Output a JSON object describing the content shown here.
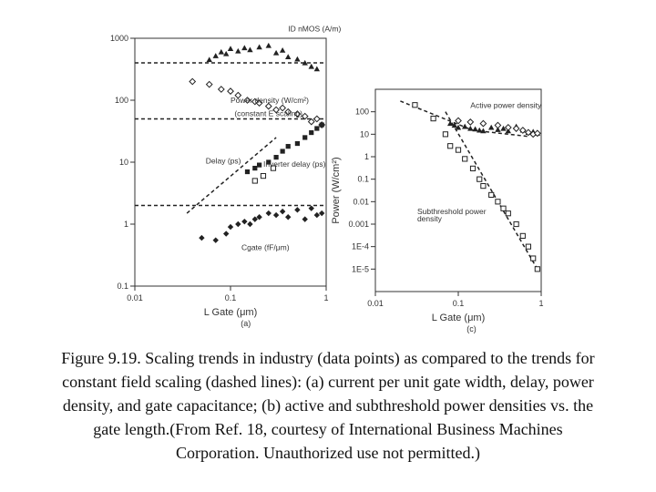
{
  "caption": "Figure 9.19. Scaling trends in industry (data points) as compared to the trends for constant field scaling (dashed lines): (a) current per unit gate width, delay, power density, and gate capacitance; (b) active and subthreshold power densities vs. the gate length.(From Ref. 18, courtesy of International Business Machines Corporation. Unauthorized use not permitted.)",
  "chart_data": [
    {
      "panel_label": "(a)",
      "type": "scatter",
      "xlabel": "L Gate (μm)",
      "ylabel": "",
      "x_scale": "log",
      "y_scale": "log",
      "xlim": [
        0.01,
        1
      ],
      "ylim": [
        0.1,
        1000
      ],
      "x_ticks": [
        {
          "v": 0.01,
          "label": "0.01"
        },
        {
          "v": 0.1,
          "label": "0.1"
        },
        {
          "v": 1,
          "label": "1"
        }
      ],
      "y_ticks": [
        {
          "v": 0.1,
          "label": "0.1"
        },
        {
          "v": 1,
          "label": "1"
        },
        {
          "v": 10,
          "label": "10"
        },
        {
          "v": 100,
          "label": "100"
        },
        {
          "v": 1000,
          "label": "1000"
        }
      ],
      "annotations": [
        {
          "text": "ID nMOS (A/m)",
          "x": 0.4,
          "y": 1300
        },
        {
          "text": "Power density (W/cm²)",
          "x": 0.1,
          "y": 90
        },
        {
          "text": "(constant E scaling)",
          "x": 0.11,
          "y": 55
        },
        {
          "text": "Delay (ps)",
          "x": 0.055,
          "y": 9.5
        },
        {
          "text": "Inverter delay (ps)",
          "x": 0.22,
          "y": 8.5
        },
        {
          "text": "Cgate (fF/μm)",
          "x": 0.13,
          "y": 0.38
        }
      ],
      "series": [
        {
          "name": "ID nMOS (A/m)",
          "marker": "triangle",
          "x": [
            0.06,
            0.07,
            0.08,
            0.09,
            0.1,
            0.12,
            0.14,
            0.16,
            0.2,
            0.25,
            0.3,
            0.35,
            0.4,
            0.5,
            0.6,
            0.7,
            0.8
          ],
          "y": [
            450,
            520,
            600,
            560,
            680,
            620,
            700,
            650,
            720,
            760,
            580,
            640,
            500,
            460,
            400,
            350,
            320
          ]
        },
        {
          "name": "Power density (W/cm²)",
          "marker": "diamond-open",
          "x": [
            0.04,
            0.06,
            0.08,
            0.1,
            0.12,
            0.15,
            0.18,
            0.2,
            0.25,
            0.3,
            0.35,
            0.4,
            0.5,
            0.6,
            0.7,
            0.8,
            0.9
          ],
          "y": [
            200,
            180,
            150,
            140,
            120,
            100,
            95,
            90,
            80,
            70,
            75,
            65,
            60,
            55,
            45,
            50,
            40
          ]
        },
        {
          "name": "Delay (ps)",
          "marker": "square",
          "x": [
            0.15,
            0.18,
            0.2,
            0.25,
            0.3,
            0.35,
            0.4,
            0.5,
            0.6,
            0.7,
            0.8,
            0.9
          ],
          "y": [
            7,
            8,
            9,
            10,
            12,
            15,
            18,
            20,
            25,
            30,
            35,
            40
          ]
        },
        {
          "name": "Inverter delay (ps)",
          "marker": "square-open",
          "x": [
            0.18,
            0.22,
            0.28
          ],
          "y": [
            5,
            6,
            8
          ]
        },
        {
          "name": "Cgate (fF/μm)",
          "marker": "diamond",
          "x": [
            0.05,
            0.07,
            0.09,
            0.1,
            0.12,
            0.14,
            0.16,
            0.18,
            0.2,
            0.25,
            0.3,
            0.35,
            0.4,
            0.5,
            0.6,
            0.7,
            0.8,
            0.9
          ],
          "y": [
            0.6,
            0.55,
            0.7,
            0.9,
            1.0,
            1.1,
            1.0,
            1.2,
            1.3,
            1.5,
            1.4,
            1.6,
            1.3,
            1.7,
            1.2,
            1.8,
            1.4,
            1.5
          ]
        }
      ],
      "reference_lines": [
        {
          "kind": "horizontal",
          "y": 400
        },
        {
          "kind": "horizontal",
          "y": 50
        },
        {
          "kind": "horizontal",
          "y": 2
        },
        {
          "kind": "segment",
          "x": [
            0.035,
            0.3
          ],
          "y": [
            1.5,
            25
          ]
        }
      ]
    },
    {
      "panel_label": "(c)",
      "type": "scatter",
      "xlabel": "L Gate (μm)",
      "ylabel": "Power (W/cm²)",
      "x_scale": "log",
      "y_scale": "log",
      "xlim": [
        0.01,
        1
      ],
      "ylim": [
        1e-06,
        1000
      ],
      "x_ticks": [
        {
          "v": 0.01,
          "label": "0.01"
        },
        {
          "v": 0.1,
          "label": "0.1"
        },
        {
          "v": 1,
          "label": "1"
        }
      ],
      "y_ticks": [
        {
          "v": 100,
          "label": "100"
        },
        {
          "v": 10,
          "label": "10"
        },
        {
          "v": 1,
          "label": "1"
        },
        {
          "v": 0.1,
          "label": "0.1"
        },
        {
          "v": 0.01,
          "label": "0.01"
        },
        {
          "v": 0.001,
          "label": "0.001"
        },
        {
          "v": 0.0001,
          "label": "1E-4"
        },
        {
          "v": 1e-05,
          "label": "1E-5"
        }
      ],
      "annotations": [
        {
          "text": "Active power density",
          "x": 0.14,
          "y": 150
        },
        {
          "text": "Subthreshold power",
          "x": 0.032,
          "y": 0.0028
        },
        {
          "text": "density",
          "x": 0.032,
          "y": 0.0013
        }
      ],
      "series": [
        {
          "name": "Active power density",
          "marker": "triangle",
          "x": [
            0.08,
            0.09,
            0.1,
            0.12,
            0.14,
            0.16,
            0.18,
            0.2,
            0.25,
            0.3,
            0.35,
            0.4,
            0.5,
            0.6,
            0.7,
            0.8,
            0.9
          ],
          "y": [
            30,
            25,
            20,
            22,
            18,
            17,
            15,
            14,
            20,
            16,
            18,
            14,
            22,
            15,
            12,
            13,
            11
          ]
        },
        {
          "name": "Active power density (measured)",
          "marker": "diamond-open",
          "x": [
            0.1,
            0.14,
            0.2,
            0.3,
            0.4,
            0.5,
            0.6,
            0.7,
            0.8,
            0.9
          ],
          "y": [
            40,
            35,
            30,
            25,
            20,
            18,
            15,
            12,
            10,
            11
          ]
        },
        {
          "name": "Subthreshold power density",
          "marker": "square-open",
          "x": [
            0.03,
            0.05,
            0.07,
            0.08,
            0.1,
            0.12,
            0.15,
            0.18,
            0.2,
            0.25,
            0.3,
            0.35,
            0.4,
            0.5,
            0.6,
            0.7,
            0.8,
            0.9
          ],
          "y": [
            200,
            50,
            10,
            3,
            2,
            0.8,
            0.3,
            0.1,
            0.05,
            0.02,
            0.01,
            0.005,
            0.003,
            0.001,
            0.0003,
            0.0001,
            3e-05,
            1e-05
          ]
        }
      ],
      "reference_lines": [
        {
          "kind": "segment",
          "x": [
            0.02,
            0.15
          ],
          "y": [
            300,
            15
          ]
        },
        {
          "kind": "segment",
          "x": [
            0.15,
            0.7
          ],
          "y": [
            15,
            8
          ]
        },
        {
          "kind": "segment",
          "x": [
            0.07,
            0.9
          ],
          "y": [
            100,
            1e-05
          ]
        }
      ]
    }
  ]
}
